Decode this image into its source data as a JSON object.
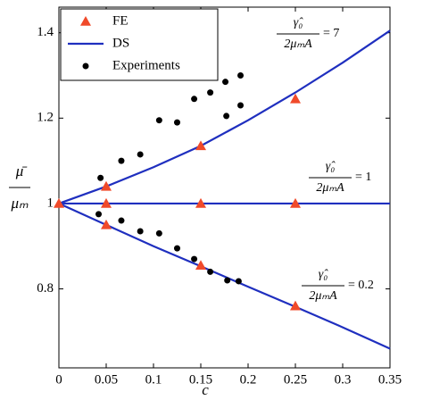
{
  "chart_data": {
    "type": "scatter-line",
    "xlabel": "c",
    "ylabel": {
      "numerator": "μ̄",
      "denominator": "μₘ"
    },
    "xlim": [
      0,
      0.35
    ],
    "ylim": [
      0.615,
      1.46
    ],
    "xticks": [
      0,
      0.05,
      0.1,
      0.15,
      0.2,
      0.25,
      0.3,
      0.35
    ],
    "yticks": [
      0.8,
      1,
      1.2,
      1.4
    ],
    "legend": "upper left",
    "series": [
      {
        "name": "FE",
        "color": "#f04a2a",
        "marker": "triangle",
        "x": [
          0,
          0.05,
          0.05,
          0.05,
          0.15,
          0.15,
          0.15,
          0.25,
          0.25,
          0.25
        ],
        "values": [
          1,
          1.04,
          1,
          0.95,
          1.135,
          1,
          0.855,
          1.245,
          1,
          0.76
        ]
      },
      {
        "name": "DS",
        "color": "#1f2fbf",
        "marker": "line",
        "x": [
          0,
          0.05,
          0.1,
          0.15,
          0.2,
          0.25,
          0.3,
          0.35,
          null,
          0,
          0.35,
          null,
          0,
          0.05,
          0.1,
          0.15,
          0.2,
          0.25,
          0.3,
          0.35
        ],
        "values": [
          1,
          1.04,
          1.085,
          1.135,
          1.195,
          1.26,
          1.33,
          1.405,
          null,
          1,
          1,
          null,
          1,
          0.95,
          0.9,
          0.853,
          0.805,
          0.758,
          0.71,
          0.66
        ]
      },
      {
        "name": "Experiments",
        "color": "#000000",
        "marker": "circle",
        "x": [
          0.044,
          0.066,
          0.086,
          0.106,
          0.125,
          0.143,
          0.16,
          0.176,
          0.177,
          0.192,
          0.192,
          0.042,
          0.066,
          0.086,
          0.106,
          0.125,
          0.143,
          0.16,
          0.178,
          0.19
        ],
        "values": [
          1.06,
          1.1,
          1.115,
          1.195,
          1.19,
          1.245,
          1.26,
          1.285,
          1.205,
          1.23,
          1.3,
          0.975,
          0.96,
          0.935,
          0.93,
          0.895,
          0.87,
          0.84,
          0.82,
          0.818
        ]
      }
    ],
    "annotations": [
      {
        "numerator": "γ̂₀",
        "denominator": "2μₘA",
        "text": "= 7"
      },
      {
        "numerator": "γ̂₀",
        "denominator": "2μₘA",
        "text": "= 1"
      },
      {
        "numerator": "γ̂₀",
        "denominator": "2μₘA",
        "text": "= 0.2"
      }
    ]
  }
}
